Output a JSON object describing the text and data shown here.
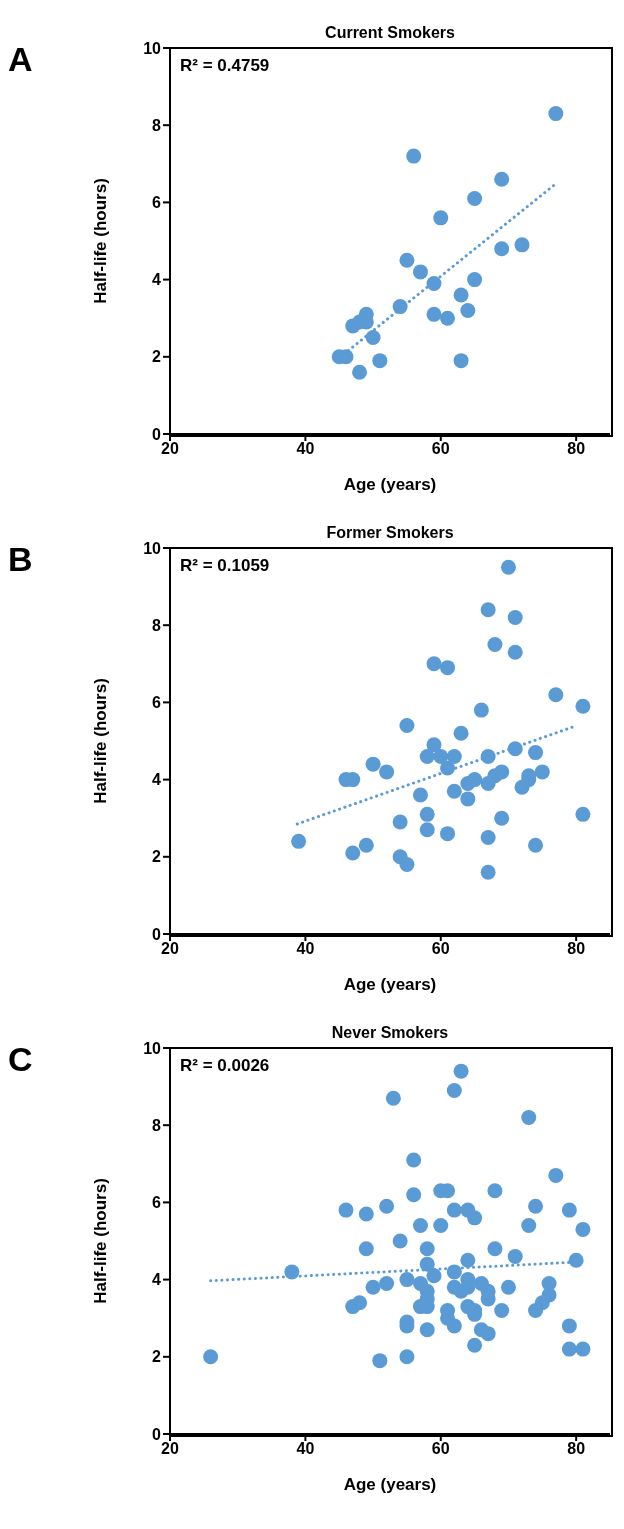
{
  "chart_data": [
    {
      "type": "scatter",
      "title": "Current Smokers",
      "xlabel": "Age (years)",
      "ylabel": "Half-life (hours)",
      "annotations": [
        "A",
        "R² = 0.4759"
      ],
      "xlim": [
        20,
        85
      ],
      "xticks": [
        20,
        40,
        60,
        80
      ],
      "ylim": [
        0,
        10
      ],
      "yticks": [
        0,
        2,
        4,
        6,
        8,
        10
      ],
      "grid": false,
      "series": [
        {
          "type": "scatter",
          "marker": "circle",
          "color": "#5b9bd5",
          "x": [
            77,
            56,
            69,
            65,
            60,
            69,
            72,
            55,
            57,
            59,
            65,
            63,
            64,
            59,
            61,
            54,
            49,
            47,
            48,
            49,
            50,
            45,
            46,
            48,
            51,
            63
          ],
          "values": [
            8.3,
            7.2,
            6.6,
            6.1,
            5.6,
            4.8,
            4.9,
            4.5,
            4.2,
            3.9,
            4.0,
            3.6,
            3.2,
            3.1,
            3.0,
            3.3,
            3.1,
            2.8,
            2.9,
            2.9,
            2.5,
            2.0,
            2.0,
            1.6,
            1.9,
            1.9
          ]
        },
        {
          "type": "line",
          "marker": "none",
          "line_style": "dotted",
          "color": "#5b9bd5",
          "x": [
            45.7,
            76.9
          ],
          "values": [
            2.07,
            6.47
          ]
        }
      ]
    },
    {
      "type": "scatter",
      "title": "Former Smokers",
      "xlabel": "Age (years)",
      "ylabel": "Half-life (hours)",
      "annotations": [
        "B",
        "R² = 0.1059"
      ],
      "xlim": [
        20,
        85
      ],
      "xticks": [
        20,
        40,
        60,
        80
      ],
      "ylim": [
        0,
        10
      ],
      "yticks": [
        0,
        2,
        4,
        6,
        8,
        10
      ],
      "grid": false,
      "series": [
        {
          "type": "scatter",
          "marker": "circle",
          "color": "#5b9bd5",
          "x": [
            70,
            67,
            71,
            68,
            71,
            59,
            61,
            77,
            81,
            66,
            55,
            63,
            59,
            67,
            71,
            74,
            58,
            60,
            62,
            61,
            50,
            52,
            46,
            47,
            64,
            65,
            67,
            68,
            69,
            73,
            73,
            75,
            72,
            57,
            62,
            64,
            58,
            54,
            69,
            81,
            58,
            61,
            67,
            39,
            49,
            47,
            54,
            55,
            67,
            74
          ],
          "values": [
            9.5,
            8.4,
            8.2,
            7.5,
            7.3,
            7.0,
            6.9,
            6.2,
            5.9,
            5.8,
            5.4,
            5.2,
            4.9,
            4.6,
            4.8,
            4.7,
            4.6,
            4.6,
            4.6,
            4.3,
            4.4,
            4.2,
            4.0,
            4.0,
            3.9,
            4.0,
            3.9,
            4.1,
            4.2,
            4.1,
            4.0,
            4.2,
            3.8,
            3.6,
            3.7,
            3.5,
            3.1,
            2.9,
            3.0,
            3.1,
            2.7,
            2.6,
            2.5,
            2.4,
            2.3,
            2.1,
            2.0,
            1.8,
            1.6,
            2.3
          ]
        },
        {
          "type": "line",
          "marker": "none",
          "line_style": "dotted",
          "color": "#5b9bd5",
          "x": [
            38.8,
            80.1
          ],
          "values": [
            2.85,
            5.4
          ]
        }
      ]
    },
    {
      "type": "scatter",
      "title": "Never Smokers",
      "xlabel": "Age (years)",
      "ylabel": "Half-life (hours)",
      "annotations": [
        "C",
        "R² = 0.0026"
      ],
      "xlim": [
        20,
        85
      ],
      "xticks": [
        20,
        40,
        60,
        80
      ],
      "ylim": [
        0,
        10
      ],
      "yticks": [
        0,
        2,
        4,
        6,
        8,
        10
      ],
      "grid": false,
      "series": [
        {
          "type": "scatter",
          "marker": "circle",
          "color": "#5b9bd5",
          "x": [
            63,
            62,
            53,
            73,
            56,
            77,
            56,
            60,
            61,
            68,
            46,
            49,
            52,
            62,
            64,
            65,
            74,
            79,
            57,
            60,
            73,
            81,
            54,
            49,
            58,
            68,
            71,
            64,
            58,
            80,
            38,
            62,
            59,
            64,
            55,
            52,
            50,
            57,
            58,
            58,
            62,
            63,
            64,
            66,
            67,
            70,
            76,
            76,
            67,
            48,
            47,
            57,
            58,
            61,
            64,
            65,
            65,
            69,
            74,
            75,
            61,
            62,
            55,
            55,
            58,
            66,
            67,
            79,
            65,
            79,
            81,
            26,
            51,
            55
          ],
          "values": [
            9.4,
            8.9,
            8.7,
            8.2,
            7.1,
            6.7,
            6.2,
            6.3,
            6.3,
            6.3,
            5.8,
            5.7,
            5.9,
            5.8,
            5.8,
            5.6,
            5.9,
            5.8,
            5.4,
            5.4,
            5.4,
            5.3,
            5.0,
            4.8,
            4.8,
            4.8,
            4.6,
            4.5,
            4.4,
            4.5,
            4.2,
            4.2,
            4.1,
            4.0,
            4.0,
            3.9,
            3.8,
            3.9,
            3.7,
            3.5,
            3.8,
            3.7,
            3.8,
            3.9,
            3.7,
            3.8,
            3.9,
            3.6,
            3.5,
            3.4,
            3.3,
            3.3,
            3.3,
            3.2,
            3.3,
            3.2,
            3.1,
            3.2,
            3.2,
            3.4,
            3.0,
            2.8,
            2.9,
            2.8,
            2.7,
            2.7,
            2.6,
            2.8,
            2.3,
            2.2,
            2.2,
            2.0,
            1.9,
            2.0
          ]
        },
        {
          "type": "line",
          "marker": "none",
          "line_style": "dotted",
          "color": "#5b9bd5",
          "x": [
            26.0,
            79.6
          ],
          "values": [
            3.97,
            4.45
          ]
        }
      ]
    }
  ]
}
